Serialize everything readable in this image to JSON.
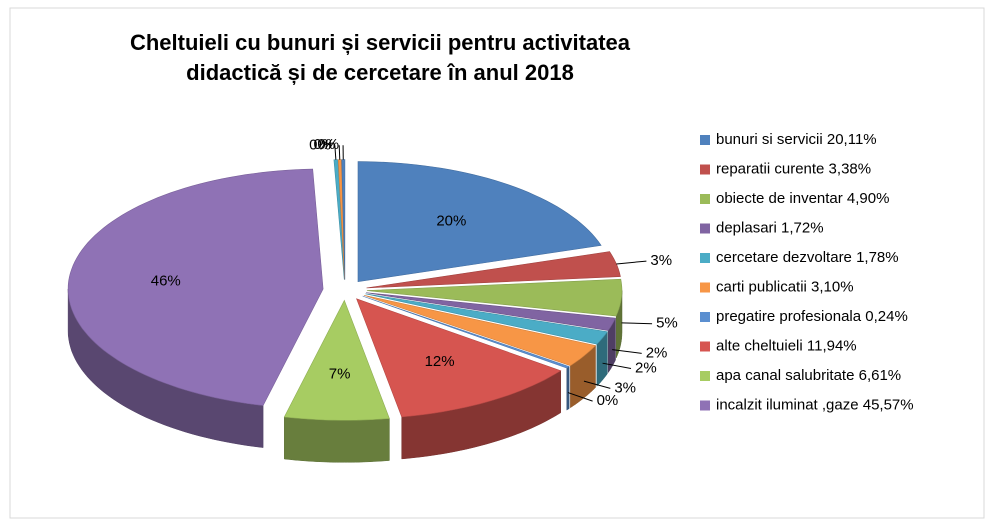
{
  "chart_data": {
    "type": "pie3d",
    "title": "Cheltuieli cu bunuri și servicii pentru activitatea didactică și de cercetare în anul 2018",
    "categories": [
      "bunuri si servicii 20,11%",
      "reparatii curente 3,38%",
      "obiecte de inventar 4,90%",
      "deplasari 1,72%",
      "cercetare dezvoltare 1,78%",
      "carti publicatii 3,10%",
      "pregatire profesionala 0,24%",
      "alte cheltuieli 11,94%",
      "apa canal salubritate 6,61%",
      "incalzit iluminat ,gaze 45,57%",
      null,
      null,
      null
    ],
    "values": [
      20.11,
      3.38,
      4.9,
      1.72,
      1.78,
      3.1,
      0.24,
      11.94,
      6.61,
      45.57,
      0.25,
      0.2,
      0.2
    ],
    "value_labels": [
      "20%",
      "3%",
      "5%",
      "2%",
      "2%",
      "3%",
      "0%",
      "12%",
      "7%",
      "46%",
      "0%",
      "0%",
      "0%"
    ],
    "colors": [
      "#4f81bd",
      "#c0504d",
      "#9bbb59",
      "#8064a2",
      "#4bacc6",
      "#f79646",
      "#5b8fd0",
      "#d65550",
      "#a7cc62",
      "#8f72b5",
      "#4bacc6",
      "#f79646",
      "#4f81bd"
    ],
    "legend": "right"
  }
}
